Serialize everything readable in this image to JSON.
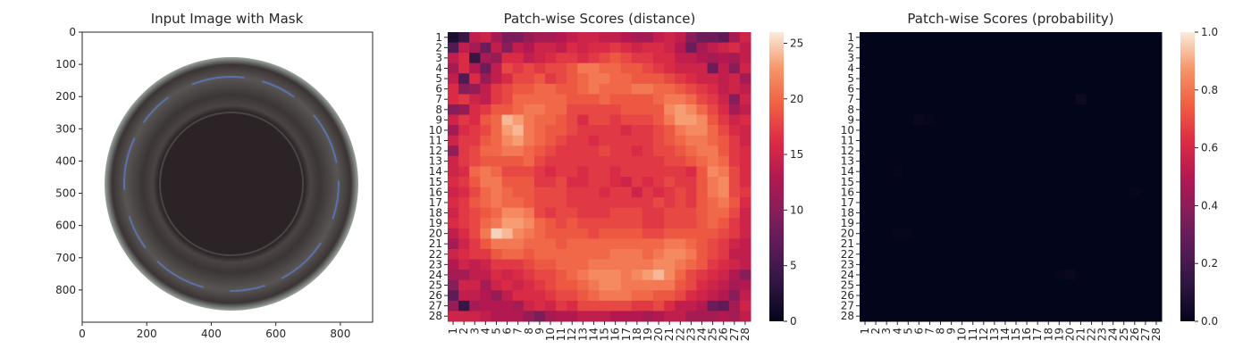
{
  "figure": {
    "panels": [
      {
        "title": "Input Image with Mask"
      },
      {
        "title": "Patch-wise Scores (distance)"
      },
      {
        "title": "Patch-wise Scores (probability)"
      }
    ]
  },
  "chart_data": [
    {
      "type": "image",
      "title": "Input Image with Mask",
      "xlim": [
        0,
        900
      ],
      "ylim": [
        900,
        0
      ],
      "x_ticks": [
        0,
        200,
        400,
        600,
        800
      ],
      "y_ticks": [
        0,
        100,
        200,
        300,
        400,
        500,
        600,
        700,
        800
      ],
      "image_description_colors": {
        "background": "#ffffff",
        "outer_ring": "#3a3434",
        "inner_dark": "#2b2325",
        "blue_highlight": "#5b7fd1"
      }
    },
    {
      "type": "heatmap",
      "title": "Patch-wise Scores (distance)",
      "x_labels": [
        "1",
        "2",
        "3",
        "4",
        "5",
        "6",
        "7",
        "8",
        "9",
        "10",
        "11",
        "12",
        "13",
        "14",
        "15",
        "16",
        "17",
        "18",
        "19",
        "20",
        "21",
        "22",
        "23",
        "24",
        "25",
        "26",
        "27",
        "28"
      ],
      "y_labels": [
        "1",
        "2",
        "3",
        "4",
        "5",
        "6",
        "7",
        "8",
        "9",
        "10",
        "11",
        "12",
        "13",
        "14",
        "15",
        "16",
        "17",
        "18",
        "19",
        "20",
        "21",
        "22",
        "23",
        "24",
        "25",
        "26",
        "27",
        "28"
      ],
      "colorbar": {
        "min": 0,
        "max": 26,
        "ticks": [
          0,
          5,
          10,
          15,
          20,
          25
        ]
      },
      "colormap": "rocket",
      "rows": [
        [
          2,
          4,
          14,
          15,
          12,
          9,
          9,
          11,
          12,
          12,
          13,
          14,
          15,
          15,
          14,
          14,
          13,
          12,
          12,
          14,
          15,
          14,
          10,
          8,
          8,
          7,
          12,
          15
        ],
        [
          6,
          14,
          12,
          8,
          14,
          10,
          14,
          13,
          15,
          15,
          14,
          16,
          15,
          16,
          16,
          17,
          16,
          15,
          16,
          16,
          15,
          13,
          8,
          12,
          14,
          15,
          16,
          14
        ],
        [
          14,
          16,
          4,
          12,
          11,
          16,
          16,
          14,
          15,
          16,
          17,
          17,
          16,
          17,
          18,
          19,
          18,
          17,
          17,
          16,
          16,
          14,
          14,
          13,
          12,
          13,
          12,
          14
        ],
        [
          12,
          16,
          13,
          8,
          14,
          18,
          17,
          18,
          17,
          18,
          18,
          19,
          21,
          21,
          20,
          20,
          19,
          19,
          18,
          17,
          16,
          15,
          15,
          15,
          8,
          14,
          10,
          15
        ],
        [
          14,
          6,
          16,
          11,
          14,
          16,
          18,
          18,
          19,
          17,
          18,
          19,
          20,
          21,
          21,
          20,
          20,
          19,
          19,
          19,
          18,
          17,
          16,
          15,
          15,
          14,
          15,
          12
        ],
        [
          16,
          10,
          11,
          14,
          17,
          18,
          19,
          19,
          20,
          20,
          19,
          19,
          20,
          21,
          20,
          20,
          20,
          21,
          21,
          20,
          20,
          19,
          18,
          17,
          16,
          14,
          15,
          14
        ],
        [
          16,
          17,
          15,
          14,
          17,
          18,
          20,
          20,
          20,
          20,
          20,
          19,
          19,
          19,
          20,
          19,
          19,
          19,
          19,
          20,
          21,
          21,
          20,
          18,
          17,
          15,
          10,
          15
        ],
        [
          10,
          11,
          16,
          17,
          19,
          19,
          20,
          21,
          21,
          20,
          20,
          18,
          18,
          18,
          18,
          18,
          19,
          19,
          19,
          19,
          22,
          23,
          22,
          20,
          18,
          16,
          12,
          14
        ],
        [
          15,
          17,
          16,
          19,
          20,
          24,
          23,
          21,
          20,
          20,
          19,
          18,
          16,
          18,
          18,
          17,
          18,
          18,
          18,
          19,
          21,
          23,
          23,
          22,
          19,
          17,
          15,
          16
        ],
        [
          12,
          16,
          17,
          18,
          20,
          23,
          24,
          21,
          20,
          19,
          19,
          18,
          17,
          17,
          17,
          17,
          16,
          17,
          17,
          18,
          19,
          21,
          22,
          22,
          20,
          18,
          16,
          15
        ],
        [
          15,
          17,
          17,
          19,
          20,
          22,
          23,
          21,
          20,
          19,
          18,
          17,
          17,
          16,
          17,
          17,
          17,
          17,
          17,
          18,
          19,
          20,
          21,
          21,
          20,
          19,
          17,
          15
        ],
        [
          11,
          17,
          18,
          20,
          20,
          21,
          21,
          20,
          19,
          18,
          17,
          17,
          17,
          17,
          18,
          17,
          17,
          16,
          17,
          18,
          18,
          19,
          20,
          21,
          21,
          19,
          17,
          16
        ],
        [
          15,
          17,
          18,
          19,
          19,
          19,
          19,
          20,
          18,
          17,
          17,
          17,
          17,
          17,
          17,
          17,
          17,
          17,
          17,
          17,
          18,
          18,
          19,
          20,
          21,
          20,
          17,
          16
        ],
        [
          15,
          16,
          20,
          21,
          20,
          18,
          18,
          18,
          17,
          16,
          17,
          17,
          16,
          17,
          17,
          16,
          17,
          17,
          17,
          17,
          17,
          17,
          16,
          19,
          22,
          21,
          18,
          16
        ],
        [
          16,
          17,
          19,
          21,
          21,
          19,
          19,
          19,
          17,
          17,
          18,
          16,
          16,
          17,
          17,
          16,
          15,
          17,
          16,
          17,
          18,
          17,
          17,
          19,
          21,
          22,
          18,
          16
        ],
        [
          15,
          16,
          18,
          20,
          21,
          20,
          19,
          19,
          18,
          18,
          18,
          17,
          17,
          17,
          16,
          17,
          17,
          15,
          17,
          16,
          17,
          18,
          17,
          19,
          21,
          22,
          18,
          17
        ],
        [
          16,
          17,
          19,
          20,
          21,
          20,
          20,
          19,
          18,
          18,
          18,
          17,
          17,
          17,
          17,
          17,
          17,
          17,
          17,
          18,
          17,
          18,
          17,
          19,
          20,
          21,
          19,
          16
        ],
        [
          15,
          17,
          18,
          19,
          20,
          22,
          22,
          21,
          18,
          17,
          18,
          18,
          17,
          17,
          17,
          18,
          18,
          18,
          17,
          17,
          18,
          18,
          18,
          19,
          20,
          20,
          18,
          15
        ],
        [
          16,
          17,
          18,
          20,
          21,
          23,
          23,
          22,
          20,
          19,
          18,
          19,
          18,
          18,
          18,
          18,
          18,
          18,
          17,
          17,
          18,
          18,
          18,
          19,
          20,
          19,
          17,
          15
        ],
        [
          14,
          16,
          18,
          21,
          25,
          24,
          22,
          21,
          20,
          19,
          19,
          19,
          19,
          18,
          19,
          19,
          19,
          19,
          18,
          18,
          19,
          19,
          19,
          19,
          19,
          18,
          17,
          15
        ],
        [
          12,
          15,
          17,
          19,
          21,
          21,
          21,
          20,
          20,
          20,
          19,
          20,
          20,
          20,
          20,
          20,
          20,
          20,
          20,
          20,
          21,
          21,
          20,
          19,
          18,
          17,
          15,
          14
        ],
        [
          15,
          16,
          17,
          17,
          19,
          20,
          20,
          19,
          20,
          20,
          20,
          20,
          20,
          20,
          20,
          21,
          21,
          21,
          20,
          21,
          22,
          22,
          21,
          19,
          18,
          17,
          14,
          14
        ],
        [
          13,
          15,
          14,
          15,
          17,
          17,
          17,
          18,
          19,
          19,
          20,
          20,
          20,
          21,
          21,
          21,
          21,
          21,
          21,
          22,
          22,
          21,
          20,
          19,
          17,
          16,
          15,
          14
        ],
        [
          12,
          12,
          14,
          14,
          16,
          15,
          16,
          17,
          18,
          18,
          19,
          20,
          21,
          22,
          22,
          22,
          21,
          22,
          23,
          24,
          22,
          20,
          18,
          17,
          16,
          15,
          13,
          10
        ],
        [
          10,
          15,
          15,
          12,
          15,
          16,
          15,
          16,
          17,
          18,
          19,
          19,
          20,
          21,
          22,
          22,
          21,
          21,
          21,
          21,
          21,
          19,
          18,
          16,
          15,
          14,
          12,
          13
        ],
        [
          7,
          14,
          14,
          13,
          11,
          14,
          16,
          16,
          16,
          17,
          18,
          18,
          19,
          20,
          21,
          21,
          21,
          20,
          20,
          19,
          19,
          18,
          16,
          15,
          14,
          13,
          10,
          14
        ],
        [
          11,
          4,
          12,
          13,
          13,
          13,
          12,
          15,
          16,
          15,
          17,
          16,
          18,
          18,
          18,
          18,
          18,
          17,
          17,
          18,
          16,
          14,
          14,
          13,
          8,
          7,
          12,
          15
        ],
        [
          15,
          15,
          15,
          14,
          13,
          13,
          13,
          11,
          9,
          12,
          13,
          13,
          14,
          14,
          14,
          13,
          13,
          13,
          12,
          13,
          14,
          14,
          12,
          12,
          12,
          13,
          12,
          14
        ]
      ]
    },
    {
      "type": "heatmap",
      "title": "Patch-wise Scores (probability)",
      "x_labels": [
        "1",
        "2",
        "3",
        "4",
        "5",
        "6",
        "7",
        "8",
        "9",
        "10",
        "11",
        "12",
        "13",
        "14",
        "15",
        "16",
        "17",
        "18",
        "19",
        "20",
        "21",
        "22",
        "23",
        "24",
        "25",
        "26",
        "27",
        "28"
      ],
      "y_labels": [
        "1",
        "2",
        "3",
        "4",
        "5",
        "6",
        "7",
        "8",
        "9",
        "10",
        "11",
        "12",
        "13",
        "14",
        "15",
        "16",
        "17",
        "18",
        "19",
        "20",
        "21",
        "22",
        "23",
        "24",
        "25",
        "26",
        "27",
        "28"
      ],
      "colorbar": {
        "min": 0.0,
        "max": 1.0,
        "ticks": [
          "0.0",
          "0.2",
          "0.4",
          "0.6",
          "0.8",
          "1.0"
        ]
      },
      "colormap": "rocket",
      "base_value": 0.0,
      "hot_cells": [
        {
          "row": 7,
          "col": 21,
          "value": 0.03
        },
        {
          "row": 9,
          "col": 6,
          "value": 0.02
        },
        {
          "row": 9,
          "col": 7,
          "value": 0.01
        },
        {
          "row": 14,
          "col": 4,
          "value": 0.01
        },
        {
          "row": 20,
          "col": 4,
          "value": 0.01
        },
        {
          "row": 20,
          "col": 5,
          "value": 0.01
        },
        {
          "row": 16,
          "col": 26,
          "value": 0.01
        },
        {
          "row": 24,
          "col": 19,
          "value": 0.01
        },
        {
          "row": 24,
          "col": 20,
          "value": 0.02
        }
      ]
    }
  ]
}
